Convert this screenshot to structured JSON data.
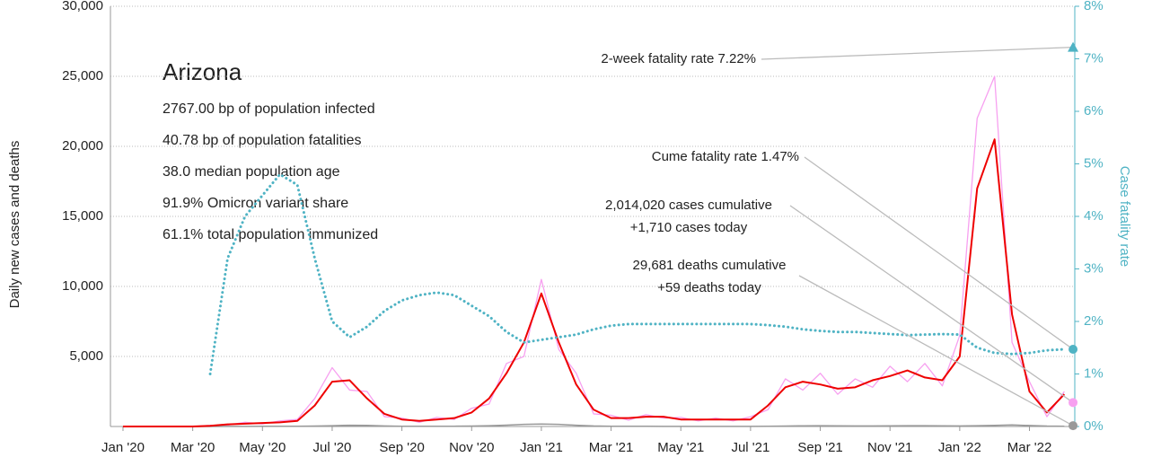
{
  "chart_data": {
    "type": "line",
    "info": {
      "title": "Arizona",
      "lines": [
        "2767.00 bp of population infected",
        "40.78 bp of population fatalities",
        "38.0 median population age",
        "91.9% Omicron variant share",
        "61.1% total population immunized"
      ]
    },
    "ylabel": "Daily new cases and deaths",
    "y2label": "Case fatality rate",
    "x": [
      0,
      0.5,
      1,
      1.5,
      2,
      2.5,
      3,
      3.5,
      4,
      4.5,
      5,
      5.5,
      6,
      6.5,
      7,
      7.5,
      8,
      8.5,
      9,
      9.5,
      10,
      10.5,
      11,
      11.5,
      12,
      12.5,
      13,
      13.5,
      14,
      14.5,
      15,
      15.5,
      16,
      16.5,
      17,
      17.5,
      18,
      18.5,
      19,
      19.5,
      20,
      20.5,
      21,
      21.5,
      22,
      22.5,
      23,
      23.5,
      24,
      24.5,
      25,
      25.5,
      26,
      26.5,
      27
    ],
    "xlim": [
      -0.36,
      27.3
    ],
    "xticks": [
      {
        "value": 0,
        "label": "Jan '20"
      },
      {
        "value": 2,
        "label": "Mar '20"
      },
      {
        "value": 4,
        "label": "May '20"
      },
      {
        "value": 6,
        "label": "Jul '20"
      },
      {
        "value": 8,
        "label": "Sep '20"
      },
      {
        "value": 10,
        "label": "Nov '20"
      },
      {
        "value": 12,
        "label": "Jan '21"
      },
      {
        "value": 14,
        "label": "Mar '21"
      },
      {
        "value": 16,
        "label": "May '21"
      },
      {
        "value": 18,
        "label": "Jul '21"
      },
      {
        "value": 20,
        "label": "Sep '21"
      },
      {
        "value": 22,
        "label": "Nov '21"
      },
      {
        "value": 24,
        "label": "Jan '22"
      },
      {
        "value": 26,
        "label": "Mar '22"
      }
    ],
    "ylim": [
      0,
      30000
    ],
    "yticks": [
      {
        "value": 5000,
        "label": "5,000"
      },
      {
        "value": 10000,
        "label": "10,000"
      },
      {
        "value": 15000,
        "label": "15,000"
      },
      {
        "value": 20000,
        "label": "20,000"
      },
      {
        "value": 25000,
        "label": "25,000"
      },
      {
        "value": 30000,
        "label": "30,000"
      }
    ],
    "y2lim": [
      0,
      8
    ],
    "y2ticks": [
      {
        "value": 0,
        "label": "0%"
      },
      {
        "value": 1,
        "label": "1%"
      },
      {
        "value": 2,
        "label": "2%"
      },
      {
        "value": 3,
        "label": "3%"
      },
      {
        "value": 4,
        "label": "4%"
      },
      {
        "value": 5,
        "label": "5%"
      },
      {
        "value": 6,
        "label": "6%"
      },
      {
        "value": 7,
        "label": "7%"
      },
      {
        "value": 8,
        "label": "8%"
      }
    ],
    "grid": true,
    "series": [
      {
        "color": "#f7a0f0",
        "width": 1.3,
        "values": [
          0,
          0,
          0,
          0,
          0,
          80,
          100,
          300,
          180,
          400,
          500,
          2000,
          4200,
          2600,
          2500,
          700,
          600,
          300,
          650,
          500,
          1300,
          1600,
          4500,
          5000,
          10500,
          5500,
          3800,
          900,
          800,
          450,
          850,
          600,
          650,
          400,
          600,
          400,
          700,
          1200,
          3400,
          2600,
          3800,
          2300,
          3400,
          2800,
          4300,
          3200,
          4500,
          2900,
          6500,
          22000,
          25000,
          6000,
          3200,
          700,
          2500
        ]
      },
      {
        "color": "#999999",
        "width": 1.5,
        "values": [
          0,
          0,
          0,
          0,
          0,
          2,
          5,
          10,
          15,
          20,
          20,
          30,
          60,
          90,
          80,
          40,
          20,
          15,
          15,
          20,
          30,
          60,
          100,
          150,
          180,
          150,
          90,
          40,
          20,
          15,
          15,
          10,
          10,
          10,
          10,
          10,
          10,
          15,
          30,
          50,
          60,
          50,
          40,
          40,
          50,
          60,
          60,
          50,
          40,
          60,
          80,
          110,
          70,
          30,
          20
        ]
      },
      {
        "color": "#ee0000",
        "width": 2,
        "values": [
          0,
          0,
          0,
          0,
          0,
          50,
          150,
          200,
          250,
          300,
          400,
          1500,
          3200,
          3300,
          2000,
          900,
          500,
          400,
          500,
          600,
          1000,
          2000,
          3800,
          6000,
          9500,
          6000,
          3000,
          1200,
          600,
          600,
          700,
          700,
          500,
          500,
          500,
          500,
          500,
          1500,
          2800,
          3200,
          3000,
          2700,
          2800,
          3300,
          3600,
          4000,
          3500,
          3300,
          5000,
          17000,
          20500,
          8000,
          2500,
          1000,
          2300
        ]
      },
      {
        "color": "#4fb3c4",
        "width": 3,
        "axis": "y2",
        "style": "dotted",
        "values": [
          null,
          null,
          null,
          null,
          null,
          1.0,
          3.2,
          4.0,
          4.4,
          4.8,
          4.6,
          3.2,
          2.0,
          1.7,
          1.9,
          2.2,
          2.4,
          2.5,
          2.55,
          2.5,
          2.3,
          2.1,
          1.8,
          1.6,
          1.65,
          1.7,
          1.75,
          1.85,
          1.92,
          1.95,
          1.95,
          1.95,
          1.95,
          1.95,
          1.95,
          1.95,
          1.95,
          1.93,
          1.9,
          1.85,
          1.82,
          1.8,
          1.8,
          1.78,
          1.76,
          1.74,
          1.75,
          1.76,
          1.75,
          1.5,
          1.4,
          1.38,
          1.4,
          1.45,
          1.47
        ]
      }
    ],
    "markers": [
      {
        "x": 27.25,
        "value": 7.22,
        "axis": "y2",
        "shape": "triangle",
        "color": "#4fb3c4",
        "label": [
          "2-week fatality rate 7.22%"
        ]
      },
      {
        "x": 27.25,
        "value": 1.47,
        "axis": "y2",
        "shape": "circle",
        "color": "#4fb3c4",
        "label": [
          "Cume fatality rate 1.47%"
        ]
      },
      {
        "x": 27.25,
        "value": 1710,
        "shape": "circle",
        "color": "#f7a0f0",
        "label": [
          "2,014,020 cases cumulative",
          "+1,710 cases today"
        ]
      },
      {
        "x": 27.25,
        "value": 59,
        "shape": "circle",
        "color": "#999999",
        "label": [
          "29,681 deaths cumulative",
          "+59 deaths today"
        ]
      }
    ]
  }
}
